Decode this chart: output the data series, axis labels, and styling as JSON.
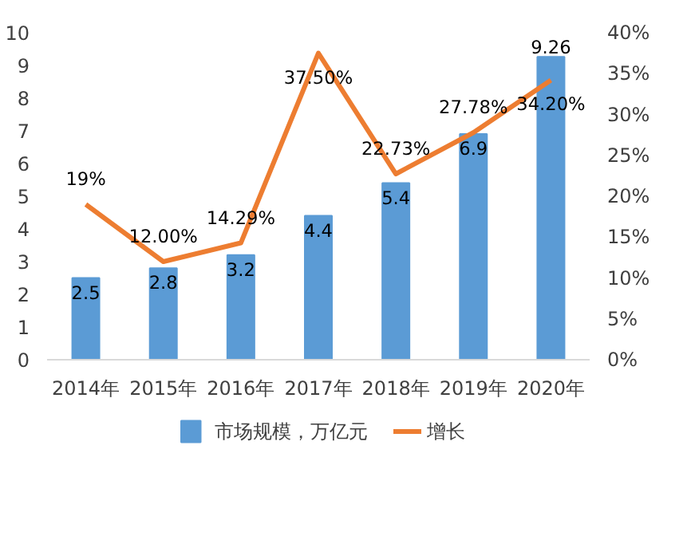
{
  "chart_data": {
    "type": "bar",
    "categories": [
      "2014年",
      "2015年",
      "2016年",
      "2017年",
      "2018年",
      "2019年",
      "2020年"
    ],
    "series": [
      {
        "name": "市场规模，万亿元",
        "color": "#5b9bd5",
        "values": [
          2.5,
          2.8,
          3.2,
          4.4,
          5.4,
          6.9,
          9.26
        ],
        "value_labels": [
          "2.5",
          "2.8",
          "3.2",
          "4.4",
          "5.4",
          "6.9",
          "9.26"
        ]
      },
      {
        "name": "增长",
        "type": "line",
        "axis": "y2",
        "color": "#ed7d31",
        "values": [
          19,
          12.0,
          14.29,
          37.5,
          22.73,
          27.78,
          34.2
        ],
        "value_labels": [
          "19%",
          "12.00%",
          "14.29%",
          "37.50%",
          "22.73%",
          "27.78%",
          "34.20%"
        ]
      }
    ],
    "ylim": [
      0,
      10
    ],
    "yticks": [
      0,
      1,
      2,
      3,
      4,
      5,
      6,
      7,
      8,
      9,
      10
    ],
    "y2lim": [
      0,
      40
    ],
    "y2ticks": [
      {
        "value": 0,
        "label": "0%"
      },
      {
        "value": 5,
        "label": "5%"
      },
      {
        "value": 10,
        "label": "10%"
      },
      {
        "value": 15,
        "label": "15%"
      },
      {
        "value": 20,
        "label": "20%"
      },
      {
        "value": 25,
        "label": "25%"
      },
      {
        "value": 30,
        "label": "30%"
      },
      {
        "value": 35,
        "label": "35%"
      },
      {
        "value": 40,
        "label": "40%"
      }
    ],
    "legend": "bottom",
    "grid": false
  }
}
